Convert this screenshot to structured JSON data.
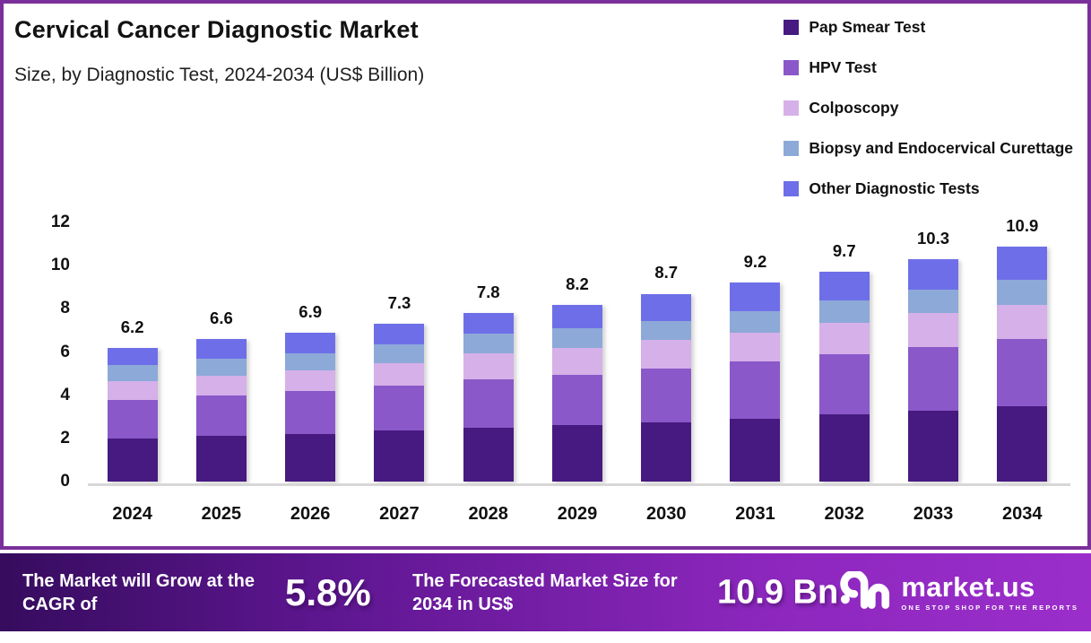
{
  "title": "Cervical Cancer Diagnostic Market",
  "subtitle": "Size, by Diagnostic Test, 2024-2034 (US$ Billion)",
  "chart_data": {
    "type": "bar",
    "stacked": true,
    "title": "Cervical Cancer Diagnostic Market Size, by Diagnostic Test, 2024-2034 (US$ Billion)",
    "categories": [
      "2024",
      "2025",
      "2026",
      "2027",
      "2028",
      "2029",
      "2030",
      "2031",
      "2032",
      "2033",
      "2034"
    ],
    "series": [
      {
        "name": "Pap Smear Test",
        "color": "#461a80",
        "values": [
          2.0,
          2.1,
          2.2,
          2.35,
          2.5,
          2.6,
          2.75,
          2.9,
          3.1,
          3.3,
          3.5
        ]
      },
      {
        "name": "HPV Test",
        "color": "#8a58c8",
        "values": [
          1.8,
          1.9,
          2.0,
          2.1,
          2.25,
          2.35,
          2.5,
          2.65,
          2.8,
          2.95,
          3.1
        ]
      },
      {
        "name": "Colposcopy",
        "color": "#d5b0e9",
        "values": [
          0.85,
          0.9,
          0.95,
          1.05,
          1.2,
          1.25,
          1.3,
          1.35,
          1.45,
          1.55,
          1.6
        ]
      },
      {
        "name": "Biopsy and Endocervical Curettage",
        "color": "#8da9d8",
        "values": [
          0.75,
          0.8,
          0.8,
          0.85,
          0.9,
          0.9,
          0.9,
          1.0,
          1.05,
          1.1,
          1.15
        ]
      },
      {
        "name": "Other Diagnostic Tests",
        "color": "#6e6fe8",
        "values": [
          0.8,
          0.9,
          0.95,
          0.95,
          0.95,
          1.1,
          1.25,
          1.3,
          1.3,
          1.4,
          1.55
        ]
      }
    ],
    "totals": [
      6.2,
      6.6,
      6.9,
      7.3,
      7.8,
      8.2,
      8.7,
      9.2,
      9.7,
      10.3,
      10.9
    ],
    "total_labels": [
      "6.2",
      "6.6",
      "6.9",
      "7.3",
      "7.8",
      "8.2",
      "8.7",
      "9.2",
      "9.7",
      "10.3",
      "10.9"
    ],
    "xlabel": "",
    "ylabel": "",
    "ylim": [
      0,
      12
    ],
    "yticks": [
      0,
      2,
      4,
      6,
      8,
      10,
      12
    ],
    "grid": false,
    "legend_position": "top-right"
  },
  "footer": {
    "cagr_label": "The Market will Grow at the CAGR of",
    "cagr_value": "5.8%",
    "forecast_label": "The Forecasted Market Size for 2034 in US$",
    "forecast_value": "10.9 Bn",
    "brand_name": "market.us",
    "brand_tagline": "ONE STOP SHOP FOR THE REPORTS"
  },
  "colors": {
    "card_border": "#7b2f9a",
    "baseline": "#d7d7d7",
    "banner_gradient_left": "#360c5e",
    "banner_gradient_right": "#9b2ecb",
    "text": "#111111",
    "banner_text": "#ffffff"
  }
}
